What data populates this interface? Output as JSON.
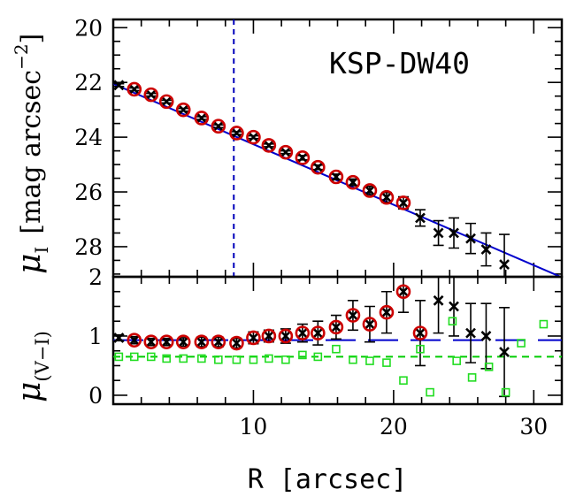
{
  "chart_data": [
    {
      "panel": "top",
      "type": "scatter",
      "annotation": "KSP-DW40",
      "ylabel_symbol": "μ",
      "ylabel_subscript": "I",
      "ylabel_unit_open": "[mag arcsec",
      "ylabel_unit_exp": "−2",
      "ylabel_unit_close": "]",
      "xlim": [
        0,
        32
      ],
      "ylim": [
        29.1,
        19.7
      ],
      "y_inverted": true,
      "yticks": [
        {
          "value": 20,
          "label": "20"
        },
        {
          "value": 22,
          "label": "22"
        },
        {
          "value": 24,
          "label": "24"
        },
        {
          "value": 26,
          "label": "26"
        },
        {
          "value": 28,
          "label": "28"
        }
      ],
      "vertical_line_x": 8.6,
      "fit_line": {
        "x": [
          0,
          32
        ],
        "y": [
          22.05,
          29.12
        ]
      },
      "series": [
        {
          "marker": "cross",
          "color": "#000000",
          "points": [
            {
              "x": 0.4,
              "y": 22.1,
              "err": 0.05
            },
            {
              "x": 1.5,
              "y": 22.25,
              "err": 0.05
            },
            {
              "x": 2.7,
              "y": 22.45,
              "err": 0.05
            },
            {
              "x": 3.8,
              "y": 22.7,
              "err": 0.05
            },
            {
              "x": 5.0,
              "y": 23.0,
              "err": 0.05
            },
            {
              "x": 6.3,
              "y": 23.3,
              "err": 0.05
            },
            {
              "x": 7.5,
              "y": 23.6,
              "err": 0.05
            },
            {
              "x": 8.8,
              "y": 23.85,
              "err": 0.05
            },
            {
              "x": 10.0,
              "y": 24.0,
              "err": 0.05
            },
            {
              "x": 11.1,
              "y": 24.3,
              "err": 0.05
            },
            {
              "x": 12.3,
              "y": 24.55,
              "err": 0.05
            },
            {
              "x": 13.5,
              "y": 24.75,
              "err": 0.08
            },
            {
              "x": 14.6,
              "y": 25.1,
              "err": 0.08
            },
            {
              "x": 15.9,
              "y": 25.45,
              "err": 0.1
            },
            {
              "x": 17.1,
              "y": 25.65,
              "err": 0.12
            },
            {
              "x": 18.3,
              "y": 25.95,
              "err": 0.15
            },
            {
              "x": 19.5,
              "y": 26.2,
              "err": 0.18
            },
            {
              "x": 20.7,
              "y": 26.4,
              "err": 0.22
            },
            {
              "x": 21.9,
              "y": 26.95,
              "err": 0.3
            },
            {
              "x": 23.2,
              "y": 27.5,
              "err": 0.45
            },
            {
              "x": 24.3,
              "y": 27.5,
              "err": 0.55
            },
            {
              "x": 25.5,
              "y": 27.7,
              "err": 0.55
            },
            {
              "x": 26.6,
              "y": 28.1,
              "err": 0.6
            },
            {
              "x": 27.9,
              "y": 28.65,
              "err": 1.1
            }
          ]
        },
        {
          "marker": "circle",
          "color": "#cc0000",
          "points": [
            {
              "x": 1.5,
              "y": 22.25
            },
            {
              "x": 2.7,
              "y": 22.45
            },
            {
              "x": 3.8,
              "y": 22.7
            },
            {
              "x": 5.0,
              "y": 23.0
            },
            {
              "x": 6.3,
              "y": 23.3
            },
            {
              "x": 7.5,
              "y": 23.6
            },
            {
              "x": 8.8,
              "y": 23.85
            },
            {
              "x": 10.0,
              "y": 24.0
            },
            {
              "x": 11.1,
              "y": 24.3
            },
            {
              "x": 12.3,
              "y": 24.55
            },
            {
              "x": 13.5,
              "y": 24.75
            },
            {
              "x": 14.6,
              "y": 25.1
            },
            {
              "x": 15.9,
              "y": 25.45
            },
            {
              "x": 17.1,
              "y": 25.65
            },
            {
              "x": 18.3,
              "y": 25.95
            },
            {
              "x": 19.5,
              "y": 26.2
            },
            {
              "x": 20.7,
              "y": 26.4
            }
          ]
        }
      ]
    },
    {
      "panel": "bottom",
      "type": "scatter",
      "ylabel_symbol": "μ",
      "ylabel_subscript": "(V−I)",
      "xlabel": "R [arcsec]",
      "xlim": [
        0,
        32
      ],
      "ylim": [
        -0.15,
        2.0
      ],
      "xticks": [
        {
          "value": 10,
          "label": "10"
        },
        {
          "value": 20,
          "label": "20"
        },
        {
          "value": 30,
          "label": "30"
        }
      ],
      "yticks": [
        {
          "value": 0,
          "label": "0"
        },
        {
          "value": 1,
          "label": "1"
        },
        {
          "value": 2,
          "label": "2"
        }
      ],
      "reference_lines": [
        {
          "y": 0.93,
          "color": "#0000cc",
          "style": "long-dash"
        },
        {
          "y": 0.65,
          "color": "#00cc00",
          "style": "dashed"
        }
      ],
      "series": [
        {
          "marker": "cross",
          "color": "#000000",
          "points": [
            {
              "x": 0.4,
              "y": 0.97,
              "err": 0.05
            },
            {
              "x": 1.5,
              "y": 0.93,
              "err": 0.06
            },
            {
              "x": 2.7,
              "y": 0.9,
              "err": 0.06
            },
            {
              "x": 3.8,
              "y": 0.9,
              "err": 0.06
            },
            {
              "x": 5.0,
              "y": 0.9,
              "err": 0.07
            },
            {
              "x": 6.3,
              "y": 0.9,
              "err": 0.08
            },
            {
              "x": 7.5,
              "y": 0.9,
              "err": 0.08
            },
            {
              "x": 8.8,
              "y": 0.88,
              "err": 0.08
            },
            {
              "x": 10.0,
              "y": 0.97,
              "err": 0.1
            },
            {
              "x": 11.1,
              "y": 1.0,
              "err": 0.1
            },
            {
              "x": 12.3,
              "y": 1.0,
              "err": 0.12
            },
            {
              "x": 13.5,
              "y": 1.05,
              "err": 0.15
            },
            {
              "x": 14.6,
              "y": 1.05,
              "err": 0.2
            },
            {
              "x": 15.9,
              "y": 1.15,
              "err": 0.2
            },
            {
              "x": 17.1,
              "y": 1.35,
              "err": 0.25
            },
            {
              "x": 18.3,
              "y": 1.2,
              "err": 0.3
            },
            {
              "x": 19.5,
              "y": 1.4,
              "err": 0.35
            },
            {
              "x": 20.7,
              "y": 1.75,
              "err": 0.35
            },
            {
              "x": 21.9,
              "y": 1.05,
              "err": 0.55
            },
            {
              "x": 23.2,
              "y": 1.6,
              "err": 0.55
            },
            {
              "x": 24.3,
              "y": 1.5,
              "err": 0.5
            },
            {
              "x": 25.5,
              "y": 1.05,
              "err": 0.5
            },
            {
              "x": 26.6,
              "y": 1.0,
              "err": 0.55
            },
            {
              "x": 27.9,
              "y": 0.73,
              "err": 0.75
            }
          ]
        },
        {
          "marker": "circle",
          "color": "#cc0000",
          "points": [
            {
              "x": 1.5,
              "y": 0.93
            },
            {
              "x": 2.7,
              "y": 0.9
            },
            {
              "x": 3.8,
              "y": 0.9
            },
            {
              "x": 5.0,
              "y": 0.9
            },
            {
              "x": 6.3,
              "y": 0.9
            },
            {
              "x": 7.5,
              "y": 0.9
            },
            {
              "x": 8.8,
              "y": 0.88
            },
            {
              "x": 10.0,
              "y": 0.97
            },
            {
              "x": 11.1,
              "y": 1.0
            },
            {
              "x": 12.3,
              "y": 1.0
            },
            {
              "x": 13.5,
              "y": 1.05
            },
            {
              "x": 14.6,
              "y": 1.05
            },
            {
              "x": 15.9,
              "y": 1.15
            },
            {
              "x": 17.1,
              "y": 1.35
            },
            {
              "x": 18.3,
              "y": 1.2
            },
            {
              "x": 19.5,
              "y": 1.4
            },
            {
              "x": 20.7,
              "y": 1.75
            },
            {
              "x": 21.9,
              "y": 1.05
            }
          ]
        },
        {
          "marker": "square",
          "color": "#22dd22",
          "points": [
            {
              "x": 0.4,
              "y": 0.65
            },
            {
              "x": 1.5,
              "y": 0.65
            },
            {
              "x": 2.7,
              "y": 0.65
            },
            {
              "x": 3.8,
              "y": 0.62
            },
            {
              "x": 5.0,
              "y": 0.62
            },
            {
              "x": 6.3,
              "y": 0.62
            },
            {
              "x": 7.5,
              "y": 0.6
            },
            {
              "x": 8.8,
              "y": 0.6
            },
            {
              "x": 10.0,
              "y": 0.6
            },
            {
              "x": 11.1,
              "y": 0.62
            },
            {
              "x": 12.3,
              "y": 0.6
            },
            {
              "x": 13.5,
              "y": 0.68
            },
            {
              "x": 14.6,
              "y": 0.65
            },
            {
              "x": 15.9,
              "y": 0.78
            },
            {
              "x": 17.1,
              "y": 0.6
            },
            {
              "x": 18.3,
              "y": 0.58
            },
            {
              "x": 19.5,
              "y": 0.55
            },
            {
              "x": 20.7,
              "y": 0.25
            },
            {
              "x": 21.9,
              "y": 0.78
            },
            {
              "x": 22.6,
              "y": 0.05
            },
            {
              "x": 24.2,
              "y": 1.25
            },
            {
              "x": 24.5,
              "y": 0.58
            },
            {
              "x": 25.6,
              "y": 0.3
            },
            {
              "x": 26.8,
              "y": 0.48
            },
            {
              "x": 28.0,
              "y": 0.05
            },
            {
              "x": 29.1,
              "y": 0.88
            },
            {
              "x": 30.7,
              "y": 1.2
            }
          ]
        }
      ]
    }
  ]
}
